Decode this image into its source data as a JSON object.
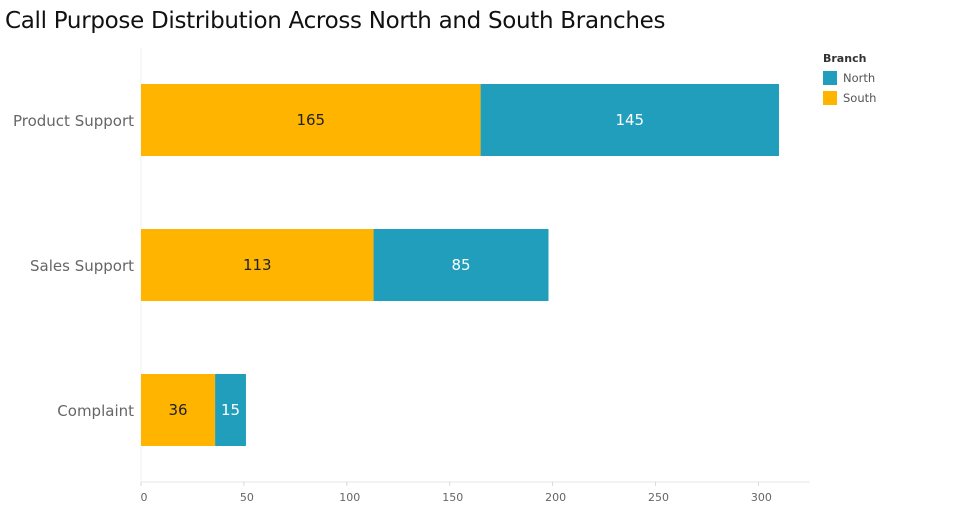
{
  "chart_data": {
    "type": "bar",
    "orientation": "horizontal",
    "stacked": true,
    "title": "Call Purpose Distribution Across North and South Branches",
    "categories": [
      "Product Support",
      "Sales Support",
      "Complaint"
    ],
    "series": [
      {
        "name": "South",
        "values": [
          165,
          113,
          36
        ],
        "color": "#FFB500"
      },
      {
        "name": "North",
        "values": [
          145,
          85,
          15
        ],
        "color": "#229EBD"
      }
    ],
    "xticks": [
      0,
      50,
      100,
      150,
      200,
      250,
      300
    ],
    "xlim": [
      0,
      325
    ],
    "legend": {
      "title": "Branch",
      "position": "top-right",
      "items": [
        {
          "name": "North",
          "color": "#229EBD"
        },
        {
          "name": "South",
          "color": "#FFB500"
        }
      ]
    },
    "grid": false
  }
}
